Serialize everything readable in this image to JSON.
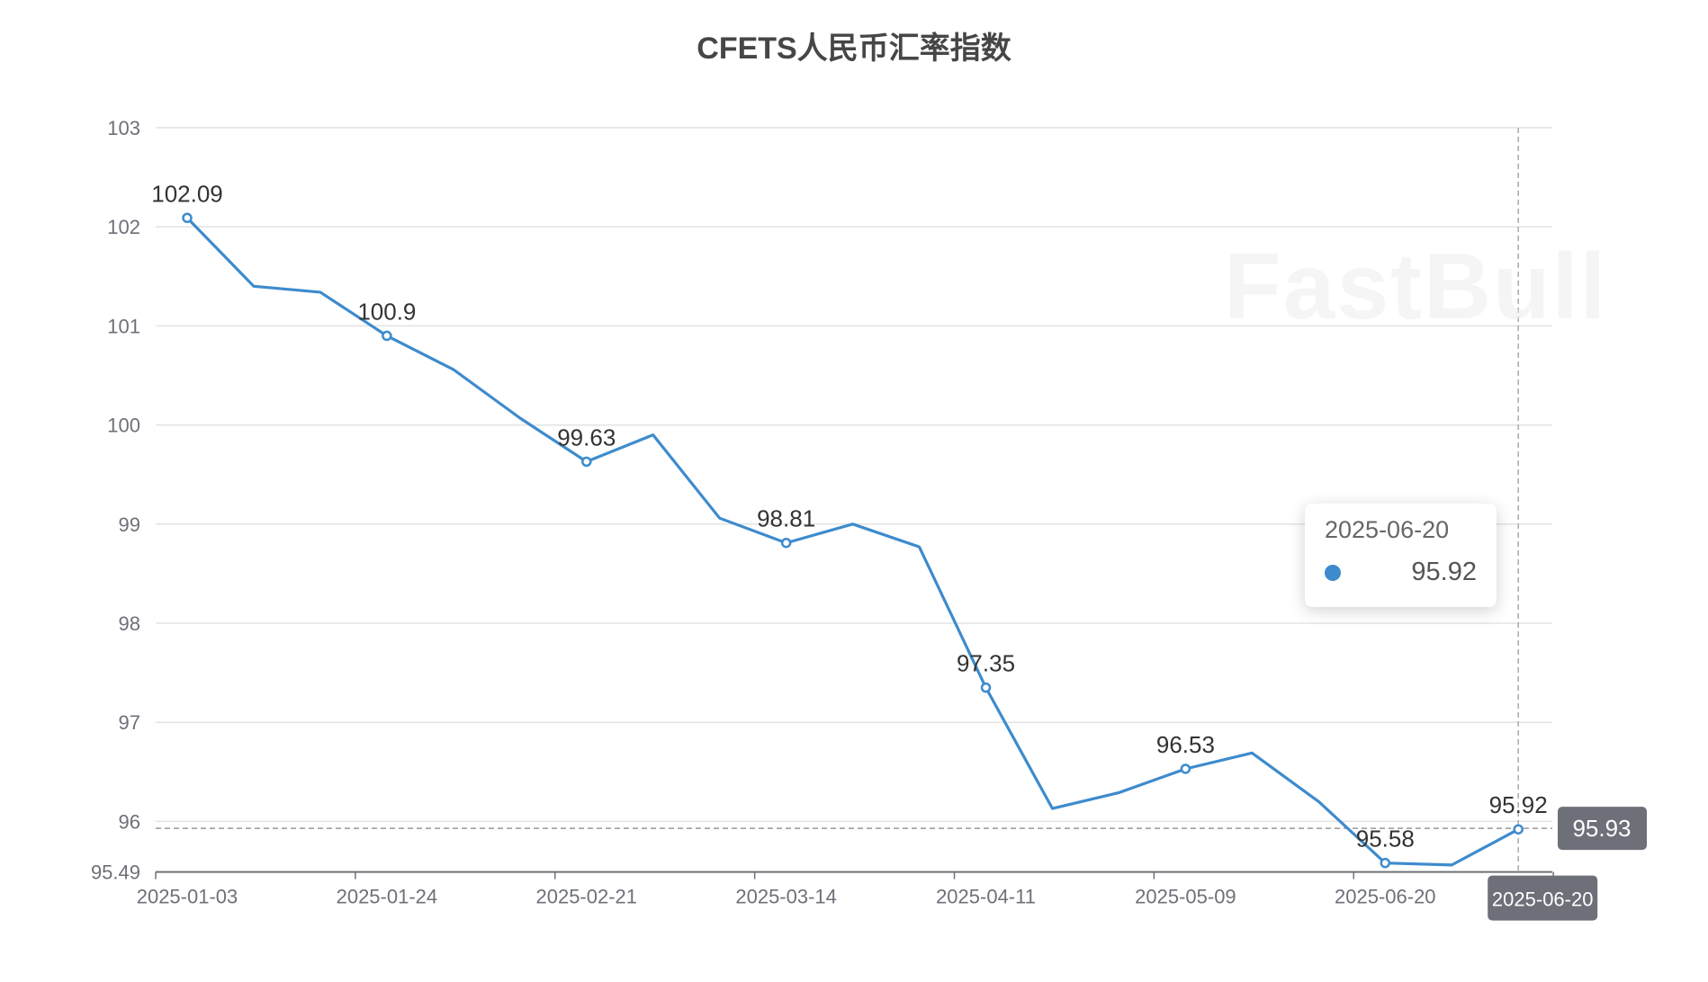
{
  "chart_data": {
    "type": "line",
    "title": "CFETS人民币汇率指数",
    "x_tick_labels": [
      "2025-01-03",
      "2025-01-24",
      "2025-02-21",
      "2025-03-14",
      "2025-04-11",
      "2025-05-09",
      "2025-06-20"
    ],
    "x_tick_every": 3,
    "values": [
      102.09,
      101.4,
      101.34,
      100.9,
      100.56,
      100.07,
      99.63,
      99.9,
      99.06,
      98.81,
      99.0,
      98.77,
      97.35,
      96.13,
      96.29,
      96.53,
      96.69,
      96.2,
      95.58,
      95.56,
      95.92
    ],
    "labeled_points": [
      0,
      3,
      6,
      9,
      12,
      15,
      18,
      20
    ],
    "ylim": [
      95.49,
      103
    ],
    "y_ticks": [
      103,
      102,
      101,
      100,
      99,
      98,
      97,
      96
    ],
    "y_min_label": "95.49",
    "grid": true,
    "line_color": "#3d8bcd",
    "axis_pointer": {
      "y_label": "95.93",
      "x_label": "2025-06-20"
    },
    "tooltip": {
      "date": "2025-06-20",
      "value": "95.92"
    }
  },
  "watermark": "FastBull"
}
